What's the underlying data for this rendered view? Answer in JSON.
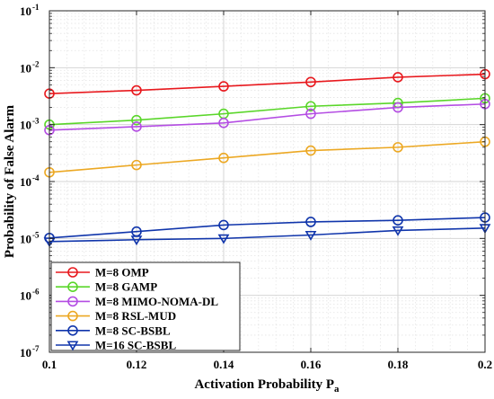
{
  "chart_data": {
    "type": "line",
    "xlabel": "Activation Probability P",
    "xlabel_subscript": "a",
    "ylabel": "Probability of False Alarm",
    "xlim": [
      0.1,
      0.2
    ],
    "ylim": [
      1e-07,
      0.1
    ],
    "yscale": "log",
    "grid": true,
    "legend_position": "bottom-left",
    "x": [
      0.1,
      0.12,
      0.14,
      0.16,
      0.18,
      0.2
    ],
    "x_tick_labels": [
      "0.1",
      "0.12",
      "0.14",
      "0.16",
      "0.18",
      "0.2"
    ],
    "y_tick_base": "10",
    "y_tick_exponents": [
      "-7",
      "-6",
      "-5",
      "-4",
      "-3",
      "-2",
      "-1"
    ],
    "series": [
      {
        "name": "M=8 OMP",
        "color": "#e8191e",
        "marker": "circle",
        "values": [
          0.0035,
          0.004,
          0.0047,
          0.0056,
          0.0068,
          0.0077
        ]
      },
      {
        "name": "M=8 GAMP",
        "color": "#5ad62a",
        "marker": "circle",
        "values": [
          0.001,
          0.0012,
          0.00155,
          0.0021,
          0.0024,
          0.0029
        ]
      },
      {
        "name": "M=8 MIMO-NOMA-DL",
        "color": "#b44de3",
        "marker": "circle",
        "values": [
          0.0008,
          0.00092,
          0.00107,
          0.00155,
          0.002,
          0.0023
        ]
      },
      {
        "name": "M=8 RSL-MUD",
        "color": "#eca823",
        "marker": "circle",
        "values": [
          0.000145,
          0.000195,
          0.00026,
          0.00035,
          0.0004,
          0.0005
        ]
      },
      {
        "name": "M=8 SC-BSBL",
        "color": "#1035ab",
        "marker": "circle",
        "values": [
          1.02e-05,
          1.32e-05,
          1.72e-05,
          1.95e-05,
          2.08e-05,
          2.33e-05
        ]
      },
      {
        "name": "M=16 SC-BSBL",
        "color": "#1035ab",
        "marker": "triangle-down",
        "values": [
          8.8e-06,
          9.5e-06,
          1e-05,
          1.15e-05,
          1.38e-05,
          1.52e-05
        ]
      }
    ]
  }
}
